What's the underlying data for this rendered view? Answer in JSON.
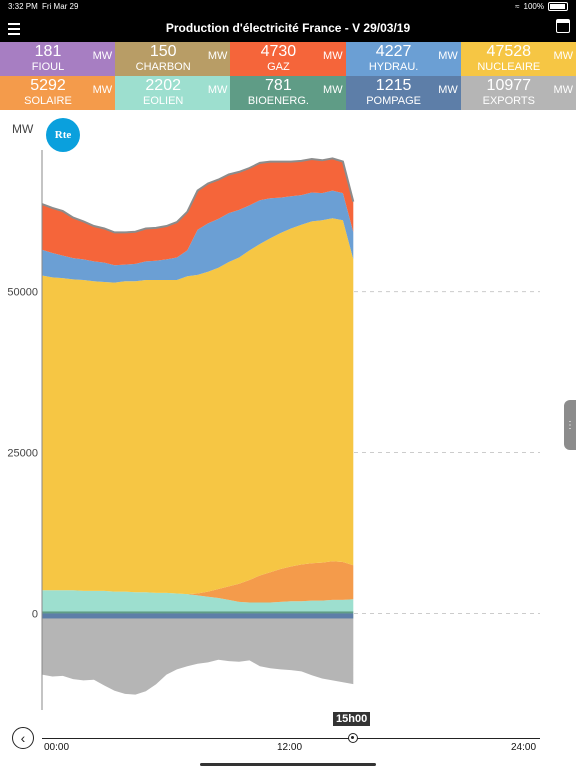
{
  "status": {
    "time": "3:32 PM",
    "date": "Fri Mar 29",
    "battery": "100%"
  },
  "nav": {
    "title": "Production d'électricité France - V 29/03/19"
  },
  "tiles": [
    {
      "value": "181",
      "label": "FIOUL",
      "unit": "MW",
      "color": "#a77ec2"
    },
    {
      "value": "150",
      "label": "CHARBON",
      "unit": "MW",
      "color": "#b89d66"
    },
    {
      "value": "4730",
      "label": "GAZ",
      "unit": "MW",
      "color": "#f5653a"
    },
    {
      "value": "4227",
      "label": "HYDRAU.",
      "unit": "MW",
      "color": "#6b9fd4"
    },
    {
      "value": "47528",
      "label": "NUCLEAIRE",
      "unit": "MW",
      "color": "#f6c644"
    },
    {
      "value": "5292",
      "label": "SOLAIRE",
      "unit": "MW",
      "color": "#f49b4b"
    },
    {
      "value": "2202",
      "label": "EOLIEN",
      "unit": "MW",
      "color": "#9ddfcf"
    },
    {
      "value": "781",
      "label": "BIOENERG.",
      "unit": "MW",
      "color": "#5f9c86"
    },
    {
      "value": "1215",
      "label": "POMPAGE",
      "unit": "MW",
      "color": "#5d7ea8"
    },
    {
      "value": "10977",
      "label": "EXPORTS",
      "unit": "MW",
      "color": "#b5b5b5"
    }
  ],
  "chart": {
    "unit_label": "MW",
    "logo_text": "Rte"
  },
  "timeline": {
    "current": "15h00",
    "start": "00:00",
    "mid": "12:00",
    "end": "24:00"
  },
  "chart_data": {
    "type": "area",
    "ylim": [
      -15000,
      72000
    ],
    "yticks": [
      0,
      25000,
      50000
    ],
    "x": [
      "00:00",
      "00:30",
      "01:00",
      "01:30",
      "02:00",
      "02:30",
      "03:00",
      "03:30",
      "04:00",
      "04:30",
      "05:00",
      "05:30",
      "06:00",
      "06:30",
      "07:00",
      "07:30",
      "08:00",
      "08:30",
      "09:00",
      "09:30",
      "10:00",
      "10:30",
      "11:00",
      "11:30",
      "12:00",
      "12:30",
      "13:00",
      "13:30",
      "14:00",
      "14:30",
      "15:00"
    ],
    "series": [
      {
        "name": "NUCLEAIRE",
        "color": "#f6c644",
        "values": [
          48900,
          48600,
          48500,
          48300,
          48300,
          48100,
          48000,
          48000,
          48200,
          48300,
          48500,
          48600,
          48600,
          48700,
          49400,
          49500,
          49700,
          49900,
          50400,
          50700,
          51200,
          51500,
          51900,
          52200,
          52500,
          52800,
          53100,
          53200,
          53300,
          53100,
          47528
        ]
      },
      {
        "name": "HYDRAU.",
        "color": "#6b9fd4",
        "values": [
          4000,
          3800,
          3500,
          3300,
          3200,
          3100,
          3000,
          2700,
          2600,
          2700,
          2900,
          3000,
          3200,
          3500,
          4000,
          7000,
          7500,
          7600,
          7600,
          7400,
          7000,
          6800,
          6200,
          5500,
          5000,
          4600,
          4500,
          4200,
          4300,
          4200,
          4227
        ]
      },
      {
        "name": "GAZ",
        "color": "#f5653a",
        "values": [
          7100,
          7000,
          6900,
          6300,
          5900,
          5500,
          5300,
          5100,
          5000,
          5000,
          5100,
          5100,
          5200,
          5500,
          6000,
          6100,
          6200,
          6100,
          6000,
          5900,
          5800,
          5800,
          5700,
          5600,
          5400,
          5300,
          5200,
          5100,
          5000,
          4900,
          4730
        ]
      },
      {
        "name": "SOLAIRE",
        "color": "#f49b4b",
        "values": [
          0,
          0,
          0,
          0,
          0,
          0,
          0,
          0,
          0,
          0,
          0,
          0,
          0,
          0,
          0,
          300,
          800,
          1400,
          2100,
          2800,
          3500,
          4200,
          4700,
          5100,
          5400,
          5700,
          5800,
          5900,
          6000,
          5900,
          5292
        ]
      },
      {
        "name": "EOLIEN",
        "color": "#9ddfcf",
        "values": [
          3600,
          3600,
          3600,
          3600,
          3500,
          3500,
          3500,
          3400,
          3400,
          3300,
          3300,
          3200,
          3200,
          3100,
          3000,
          2800,
          2600,
          2400,
          2100,
          1800,
          1700,
          1700,
          1700,
          1800,
          1900,
          1900,
          2000,
          2000,
          2100,
          2100,
          2202
        ]
      },
      {
        "name": "EXPORTS",
        "color": "#b5b5b5",
        "values": [
          -9500,
          -9800,
          -9700,
          -10200,
          -10400,
          -10300,
          -11200,
          -12000,
          -12500,
          -12600,
          -12100,
          -11000,
          -9500,
          -8700,
          -8200,
          -7800,
          -7600,
          -7200,
          -7400,
          -7500,
          -7300,
          -8200,
          -8500,
          -8700,
          -8800,
          -9000,
          -9600,
          -10100,
          -10400,
          -10700,
          -10977
        ]
      }
    ]
  }
}
